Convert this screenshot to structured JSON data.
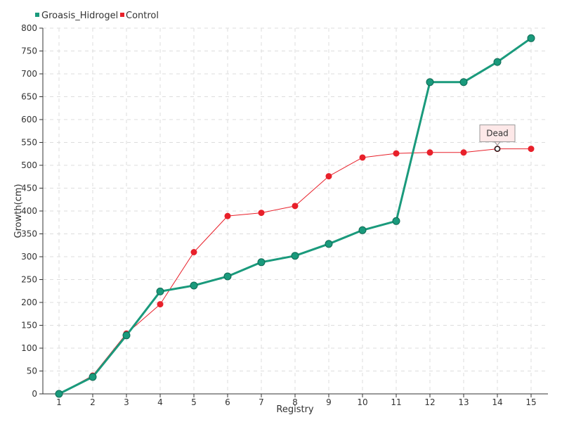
{
  "chart_data": {
    "type": "line",
    "title": "",
    "xlabel": "Registry",
    "ylabel": "Growth(cm)",
    "categories": [
      "1",
      "2",
      "3",
      "4",
      "5",
      "6",
      "7",
      "8",
      "9",
      "10",
      "11",
      "12",
      "13",
      "14",
      "15"
    ],
    "ylim": [
      0,
      800
    ],
    "yticks": [
      0,
      50,
      100,
      150,
      200,
      250,
      300,
      350,
      400,
      450,
      500,
      550,
      600,
      650,
      700,
      750,
      800
    ],
    "grid": true,
    "legend_position": "top-left",
    "series": [
      {
        "name": "Groasis_Hidrogel",
        "color": "#1a9a7c",
        "values": [
          0,
          37,
          128,
          224,
          237,
          257,
          288,
          302,
          328,
          358,
          378,
          682,
          682,
          726,
          778
        ]
      },
      {
        "name": "Control",
        "color": "#e8202a",
        "values": [
          0,
          40,
          132,
          196,
          310,
          389,
          396,
          411,
          476,
          517,
          526,
          528,
          528,
          536,
          536
        ]
      }
    ],
    "annotations": [
      {
        "text": "Dead",
        "series": "Control",
        "category": "14",
        "value": 536
      }
    ]
  }
}
